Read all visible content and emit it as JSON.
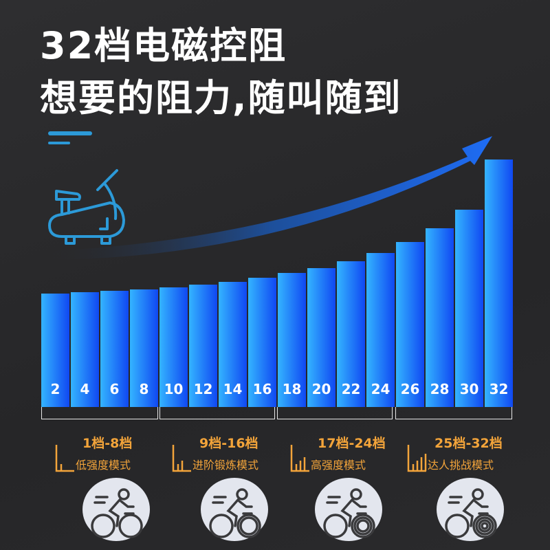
{
  "headline": {
    "line1": "32档电磁控阻",
    "line2": "想要的阻力,随叫随到"
  },
  "colors": {
    "bar_light": "#34b4ff",
    "bar_dark": "#1048f2",
    "accent_orange": "#f3a43a",
    "icon_blue": "#2c9ad8"
  },
  "bars": {
    "labels": [
      "2",
      "4",
      "6",
      "8",
      "10",
      "12",
      "14",
      "16",
      "18",
      "20",
      "22",
      "24",
      "26",
      "28",
      "30",
      "32"
    ]
  },
  "groups": [
    {
      "range": "1档-8档",
      "mode": "低强度模式",
      "level_bars": 1,
      "icon": "cyclist-icon"
    },
    {
      "range": "9档-16档",
      "mode": "进阶锻炼模式",
      "level_bars": 2,
      "icon": "cyclist-icon"
    },
    {
      "range": "17档-24档",
      "mode": "高强度模式",
      "level_bars": 3,
      "icon": "cyclist-icon"
    },
    {
      "range": "25档-32档",
      "mode": "达人挑战模式",
      "level_bars": 4,
      "icon": "cyclist-icon"
    }
  ],
  "icons": {
    "bike": "exercise-bike-icon",
    "arrow": "rising-arrow-icon"
  }
}
